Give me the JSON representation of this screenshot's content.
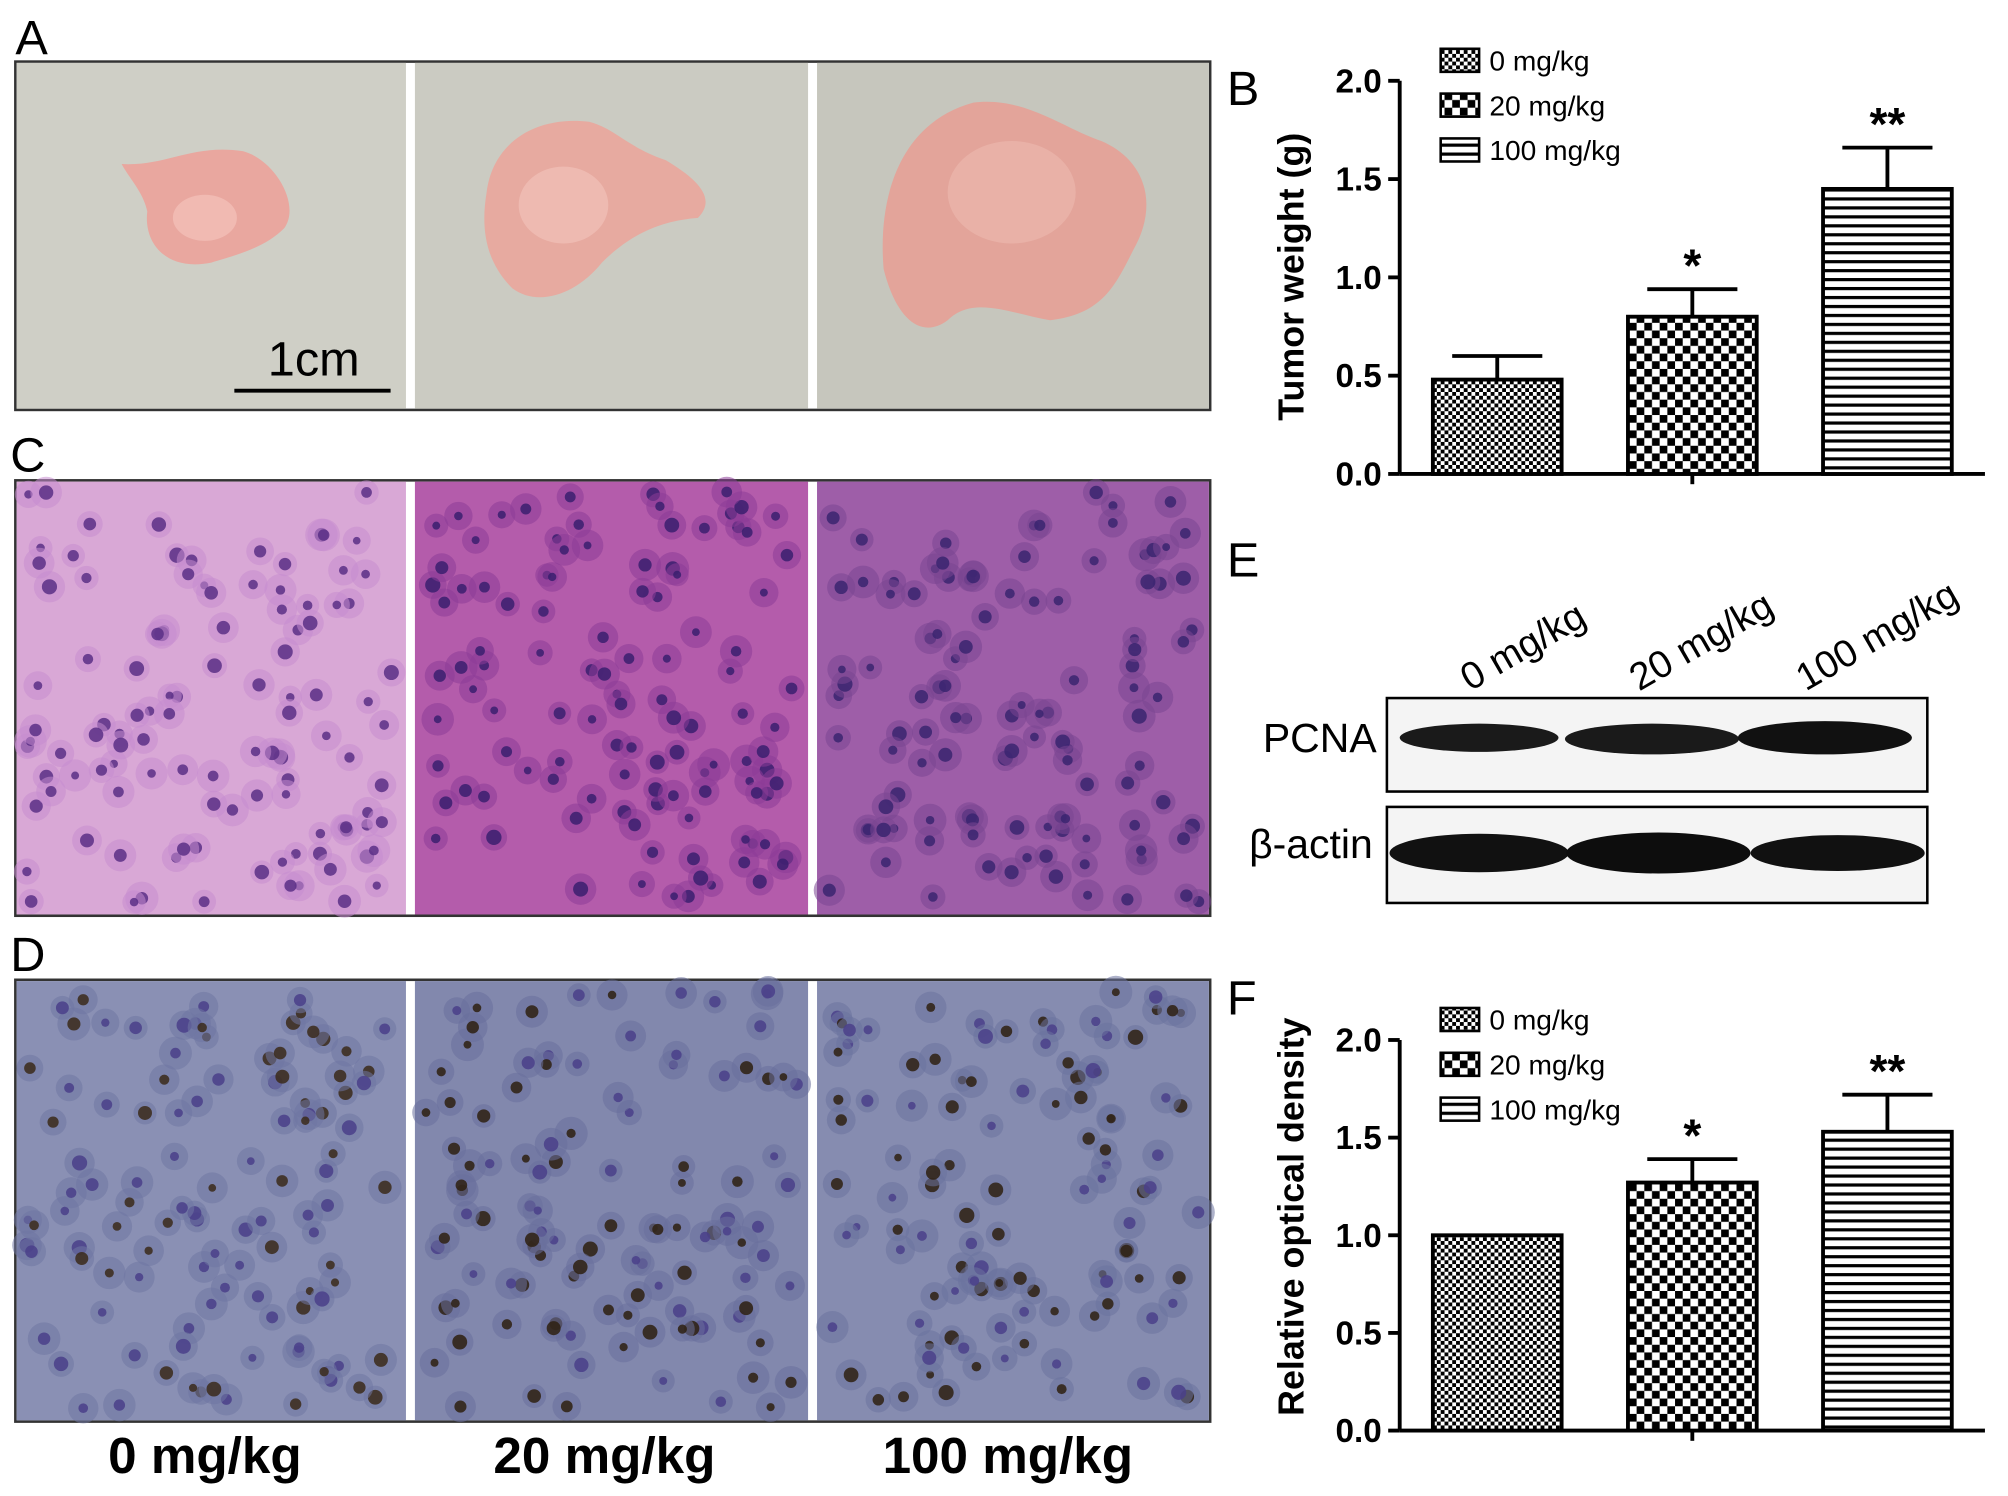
{
  "panel_labels": [
    "A",
    "B",
    "C",
    "D",
    "E",
    "F"
  ],
  "scale_bar": "1cm",
  "image_columns": [
    "0 mg/kg",
    "20 mg/kg",
    "100 mg/kg"
  ],
  "western_blot": {
    "lanes": [
      "0 mg/kg",
      "20 mg/kg",
      "100 mg/kg"
    ],
    "rows": [
      "PCNA",
      "β-actin"
    ]
  },
  "chart_data": [
    {
      "type": "bar",
      "ylabel": "Tumor weight (g)",
      "categories": [
        null
      ],
      "legend": "upper left",
      "ylim": [
        0,
        2.0
      ],
      "yticks": [
        {
          "value": 0,
          "label": "0.0"
        },
        {
          "value": 0.5,
          "label": "0.5"
        },
        {
          "value": 1.0,
          "label": "1.0"
        },
        {
          "value": 1.5,
          "label": "1.5"
        },
        {
          "value": 2.0,
          "label": "2.0"
        }
      ],
      "series": [
        {
          "name": "0 mg/kg",
          "color": "#000000",
          "pattern": "fine-checker",
          "values": [
            0.48
          ],
          "errors": [
            0.12
          ]
        },
        {
          "name": "20 mg/kg",
          "color": "#000000",
          "pattern": "checker",
          "values": [
            0.8
          ],
          "errors": [
            0.14
          ],
          "annotation": "*"
        },
        {
          "name": "100 mg/kg",
          "color": "#000000",
          "pattern": "stripes",
          "values": [
            1.45
          ],
          "errors": [
            0.21
          ],
          "annotation": "**"
        }
      ]
    },
    {
      "type": "bar",
      "ylabel": "Relative optical density",
      "categories": [
        null
      ],
      "legend": "upper left",
      "ylim": [
        0,
        2.0
      ],
      "yticks": [
        {
          "value": 0,
          "label": "0.0"
        },
        {
          "value": 0.5,
          "label": "0.5"
        },
        {
          "value": 1.0,
          "label": "1.0"
        },
        {
          "value": 1.5,
          "label": "1.5"
        },
        {
          "value": 2.0,
          "label": "2.0"
        }
      ],
      "series": [
        {
          "name": "0 mg/kg",
          "color": "#000000",
          "pattern": "fine-checker",
          "values": [
            1.0
          ],
          "errors": [
            null
          ]
        },
        {
          "name": "20 mg/kg",
          "color": "#000000",
          "pattern": "checker",
          "values": [
            1.27
          ],
          "errors": [
            0.12
          ],
          "annotation": "*"
        },
        {
          "name": "100 mg/kg",
          "color": "#000000",
          "pattern": "stripes",
          "values": [
            1.53
          ],
          "errors": [
            0.19
          ],
          "annotation": "**"
        }
      ]
    }
  ]
}
